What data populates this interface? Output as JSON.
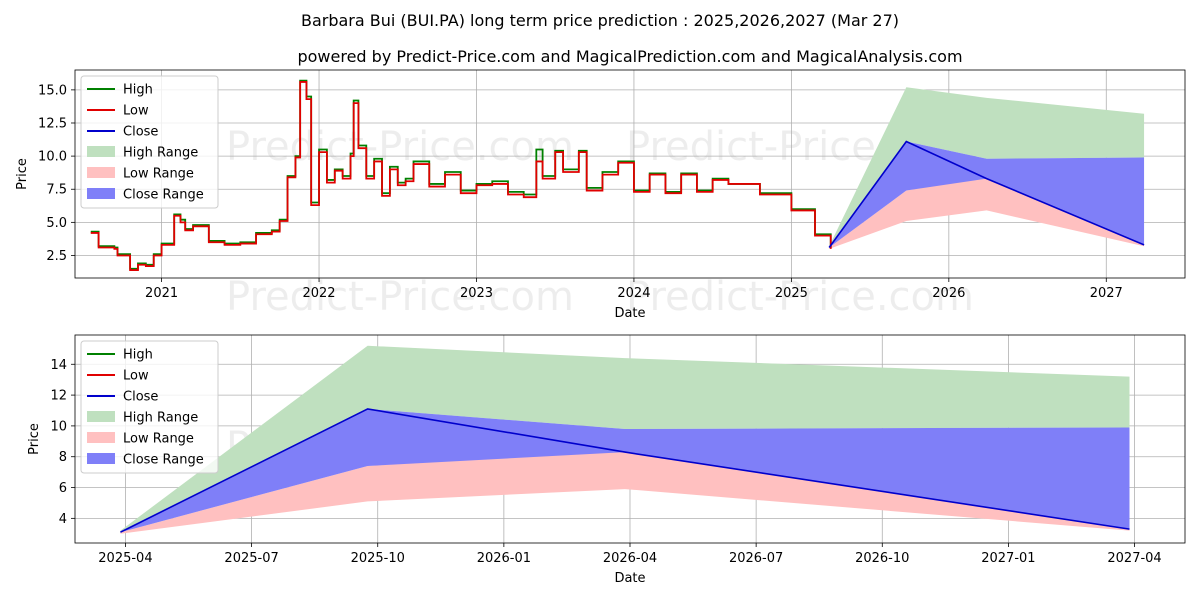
{
  "chart_data": [
    {
      "type": "line",
      "title": "Barbara Bui (BUI.PA) long term price prediction : 2025,2026,2027 (Mar 27)",
      "subtitle": "powered by Predict-Price.com and MagicalPrediction.com and MagicalAnalysis.com",
      "xlabel": "Date",
      "ylabel": "Price",
      "watermark": "Predict-Price.com",
      "xlim": [
        2020.45,
        2027.5
      ],
      "ylim": [
        0.8,
        16.5
      ],
      "x_ticks": [
        2021,
        2022,
        2023,
        2024,
        2025,
        2026,
        2027
      ],
      "x_tick_labels": [
        "2021",
        "2022",
        "2023",
        "2024",
        "2025",
        "2026",
        "2027"
      ],
      "y_ticks": [
        2.5,
        5.0,
        7.5,
        10.0,
        12.5,
        15.0
      ],
      "y_tick_labels": [
        "2.5",
        "5.0",
        "7.5",
        "10.0",
        "12.5",
        "15.0"
      ],
      "legend": [
        "High",
        "Low",
        "Close",
        "High Range",
        "Low Range",
        "Close Range"
      ],
      "legend_position": "top-left",
      "grid": true,
      "series": [
        {
          "name": "High",
          "color": "#008000",
          "points": [
            [
              2020.55,
              4.3
            ],
            [
              2020.6,
              3.2
            ],
            [
              2020.7,
              3.1
            ],
            [
              2020.72,
              2.6
            ],
            [
              2020.78,
              2.6
            ],
            [
              2020.8,
              1.5
            ],
            [
              2020.85,
              1.9
            ],
            [
              2020.9,
              1.8
            ],
            [
              2020.95,
              2.6
            ],
            [
              2021.0,
              3.4
            ],
            [
              2021.08,
              5.6
            ],
            [
              2021.12,
              5.2
            ],
            [
              2021.15,
              4.5
            ],
            [
              2021.2,
              4.8
            ],
            [
              2021.3,
              3.6
            ],
            [
              2021.4,
              3.4
            ],
            [
              2021.5,
              3.5
            ],
            [
              2021.6,
              4.2
            ],
            [
              2021.7,
              4.4
            ],
            [
              2021.75,
              5.2
            ],
            [
              2021.8,
              8.5
            ],
            [
              2021.85,
              10.0
            ],
            [
              2021.88,
              15.7
            ],
            [
              2021.92,
              14.5
            ],
            [
              2021.95,
              6.5
            ],
            [
              2022.0,
              10.5
            ],
            [
              2022.05,
              8.2
            ],
            [
              2022.1,
              9.0
            ],
            [
              2022.15,
              8.5
            ],
            [
              2022.2,
              10.2
            ],
            [
              2022.22,
              14.2
            ],
            [
              2022.25,
              10.8
            ],
            [
              2022.3,
              8.5
            ],
            [
              2022.35,
              9.8
            ],
            [
              2022.4,
              7.2
            ],
            [
              2022.45,
              9.2
            ],
            [
              2022.5,
              8.0
            ],
            [
              2022.55,
              8.3
            ],
            [
              2022.6,
              9.6
            ],
            [
              2022.7,
              7.9
            ],
            [
              2022.8,
              8.8
            ],
            [
              2022.9,
              7.4
            ],
            [
              2023.0,
              7.9
            ],
            [
              2023.1,
              8.1
            ],
            [
              2023.2,
              7.3
            ],
            [
              2023.3,
              7.1
            ],
            [
              2023.38,
              10.5
            ],
            [
              2023.42,
              8.5
            ],
            [
              2023.5,
              10.4
            ],
            [
              2023.55,
              9.0
            ],
            [
              2023.65,
              10.4
            ],
            [
              2023.7,
              7.6
            ],
            [
              2023.8,
              8.8
            ],
            [
              2023.9,
              9.6
            ],
            [
              2024.0,
              7.4
            ],
            [
              2024.1,
              8.7
            ],
            [
              2024.2,
              7.3
            ],
            [
              2024.3,
              8.7
            ],
            [
              2024.4,
              7.4
            ],
            [
              2024.5,
              8.3
            ],
            [
              2024.6,
              7.9
            ],
            [
              2024.75,
              7.9
            ],
            [
              2024.8,
              7.2
            ],
            [
              2024.98,
              7.2
            ],
            [
              2025.0,
              6.0
            ],
            [
              2025.12,
              6.0
            ],
            [
              2025.15,
              4.1
            ],
            [
              2025.22,
              4.1
            ],
            [
              2025.25,
              3.1
            ]
          ]
        },
        {
          "name": "Low",
          "color": "#e00000",
          "points": [
            [
              2020.55,
              4.2
            ],
            [
              2020.6,
              3.1
            ],
            [
              2020.7,
              3.0
            ],
            [
              2020.72,
              2.5
            ],
            [
              2020.78,
              2.5
            ],
            [
              2020.8,
              1.4
            ],
            [
              2020.85,
              1.8
            ],
            [
              2020.9,
              1.7
            ],
            [
              2020.95,
              2.5
            ],
            [
              2021.0,
              3.3
            ],
            [
              2021.08,
              5.5
            ],
            [
              2021.12,
              5.0
            ],
            [
              2021.15,
              4.4
            ],
            [
              2021.2,
              4.7
            ],
            [
              2021.3,
              3.5
            ],
            [
              2021.4,
              3.3
            ],
            [
              2021.5,
              3.4
            ],
            [
              2021.6,
              4.1
            ],
            [
              2021.7,
              4.3
            ],
            [
              2021.75,
              5.1
            ],
            [
              2021.8,
              8.4
            ],
            [
              2021.85,
              9.9
            ],
            [
              2021.88,
              15.6
            ],
            [
              2021.92,
              14.3
            ],
            [
              2021.95,
              6.3
            ],
            [
              2022.0,
              10.3
            ],
            [
              2022.05,
              8.0
            ],
            [
              2022.1,
              8.9
            ],
            [
              2022.15,
              8.3
            ],
            [
              2022.2,
              10.0
            ],
            [
              2022.22,
              14.0
            ],
            [
              2022.25,
              10.6
            ],
            [
              2022.3,
              8.3
            ],
            [
              2022.35,
              9.6
            ],
            [
              2022.4,
              7.0
            ],
            [
              2022.45,
              9.0
            ],
            [
              2022.5,
              7.8
            ],
            [
              2022.55,
              8.1
            ],
            [
              2022.6,
              9.4
            ],
            [
              2022.7,
              7.7
            ],
            [
              2022.8,
              8.6
            ],
            [
              2022.9,
              7.2
            ],
            [
              2023.0,
              7.8
            ],
            [
              2023.1,
              7.9
            ],
            [
              2023.2,
              7.1
            ],
            [
              2023.3,
              6.9
            ],
            [
              2023.38,
              9.6
            ],
            [
              2023.42,
              8.3
            ],
            [
              2023.5,
              10.3
            ],
            [
              2023.55,
              8.8
            ],
            [
              2023.65,
              10.3
            ],
            [
              2023.7,
              7.4
            ],
            [
              2023.8,
              8.6
            ],
            [
              2023.9,
              9.5
            ],
            [
              2024.0,
              7.3
            ],
            [
              2024.1,
              8.6
            ],
            [
              2024.2,
              7.2
            ],
            [
              2024.3,
              8.6
            ],
            [
              2024.4,
              7.3
            ],
            [
              2024.5,
              8.2
            ],
            [
              2024.6,
              7.9
            ],
            [
              2024.75,
              7.9
            ],
            [
              2024.8,
              7.1
            ],
            [
              2024.98,
              7.1
            ],
            [
              2025.0,
              5.9
            ],
            [
              2025.12,
              5.9
            ],
            [
              2025.15,
              4.0
            ],
            [
              2025.22,
              4.0
            ],
            [
              2025.25,
              3.0
            ]
          ]
        },
        {
          "name": "Close",
          "color": "#0000cc",
          "points": [
            [
              2025.24,
              3.1
            ],
            [
              2025.73,
              11.1
            ],
            [
              2026.24,
              8.3
            ],
            [
              2027.24,
              3.3
            ]
          ]
        },
        {
          "name": "High Range",
          "color": "#bfe0bf",
          "upper": [
            [
              2025.24,
              3.2
            ],
            [
              2025.73,
              15.2
            ],
            [
              2026.24,
              14.4
            ],
            [
              2027.24,
              13.2
            ]
          ],
          "lower": [
            [
              2025.24,
              3.1
            ],
            [
              2025.73,
              11.1
            ],
            [
              2026.24,
              9.8
            ],
            [
              2027.24,
              9.9
            ]
          ]
        },
        {
          "name": "Low Range",
          "color": "#ffc0c0",
          "upper": [
            [
              2025.24,
              3.1
            ],
            [
              2025.73,
              7.4
            ],
            [
              2026.24,
              8.4
            ],
            [
              2027.24,
              3.4
            ]
          ],
          "lower": [
            [
              2025.24,
              3.0
            ],
            [
              2025.73,
              5.1
            ],
            [
              2026.24,
              5.9
            ],
            [
              2027.24,
              3.2
            ]
          ]
        },
        {
          "name": "Close Range",
          "color": "#7f7ff8",
          "upper": [
            [
              2025.24,
              3.1
            ],
            [
              2025.73,
              11.1
            ],
            [
              2026.24,
              9.8
            ],
            [
              2027.24,
              9.9
            ]
          ],
          "lower": [
            [
              2025.24,
              3.1
            ],
            [
              2025.73,
              7.4
            ],
            [
              2026.24,
              8.3
            ],
            [
              2027.24,
              3.3
            ]
          ]
        }
      ]
    },
    {
      "type": "line",
      "xlabel": "Date",
      "ylabel": "Price",
      "watermark": "Predict-Price.com",
      "xlim": [
        2025.15,
        2027.35
      ],
      "ylim": [
        2.4,
        15.9
      ],
      "x_ticks": [
        2025.25,
        2025.5,
        2025.75,
        2026.0,
        2026.25,
        2026.5,
        2026.75,
        2027.0,
        2027.25
      ],
      "x_tick_labels": [
        "2025-04",
        "2025-07",
        "2025-10",
        "2026-01",
        "2026-04",
        "2026-07",
        "2026-10",
        "2027-01",
        "2027-04"
      ],
      "y_ticks": [
        4,
        6,
        8,
        10,
        12,
        14
      ],
      "y_tick_labels": [
        "4",
        "6",
        "8",
        "10",
        "12",
        "14"
      ],
      "legend": [
        "High",
        "Low",
        "Close",
        "High Range",
        "Low Range",
        "Close Range"
      ],
      "legend_position": "top-left",
      "grid": true,
      "series": [
        {
          "name": "High",
          "color": "#008000",
          "points": []
        },
        {
          "name": "Low",
          "color": "#e00000",
          "points": []
        },
        {
          "name": "Close",
          "color": "#0000cc",
          "points": [
            [
              2025.24,
              3.1
            ],
            [
              2025.73,
              11.1
            ],
            [
              2026.24,
              8.3
            ],
            [
              2027.24,
              3.3
            ]
          ]
        },
        {
          "name": "High Range",
          "color": "#bfe0bf",
          "upper": [
            [
              2025.24,
              3.2
            ],
            [
              2025.73,
              15.2
            ],
            [
              2026.24,
              14.4
            ],
            [
              2027.24,
              13.2
            ]
          ],
          "lower": [
            [
              2025.24,
              3.1
            ],
            [
              2025.73,
              11.1
            ],
            [
              2026.24,
              9.8
            ],
            [
              2027.24,
              9.9
            ]
          ]
        },
        {
          "name": "Low Range",
          "color": "#ffc0c0",
          "upper": [
            [
              2025.24,
              3.1
            ],
            [
              2025.73,
              7.4
            ],
            [
              2026.24,
              8.4
            ],
            [
              2027.24,
              3.4
            ]
          ],
          "lower": [
            [
              2025.24,
              3.0
            ],
            [
              2025.73,
              5.1
            ],
            [
              2026.24,
              5.9
            ],
            [
              2027.24,
              3.2
            ]
          ]
        },
        {
          "name": "Close Range",
          "color": "#7f7ff8",
          "upper": [
            [
              2025.24,
              3.1
            ],
            [
              2025.73,
              11.1
            ],
            [
              2026.24,
              9.8
            ],
            [
              2027.24,
              9.9
            ]
          ],
          "lower": [
            [
              2025.24,
              3.1
            ],
            [
              2025.73,
              7.4
            ],
            [
              2026.24,
              8.3
            ],
            [
              2027.24,
              3.3
            ]
          ]
        }
      ]
    }
  ]
}
